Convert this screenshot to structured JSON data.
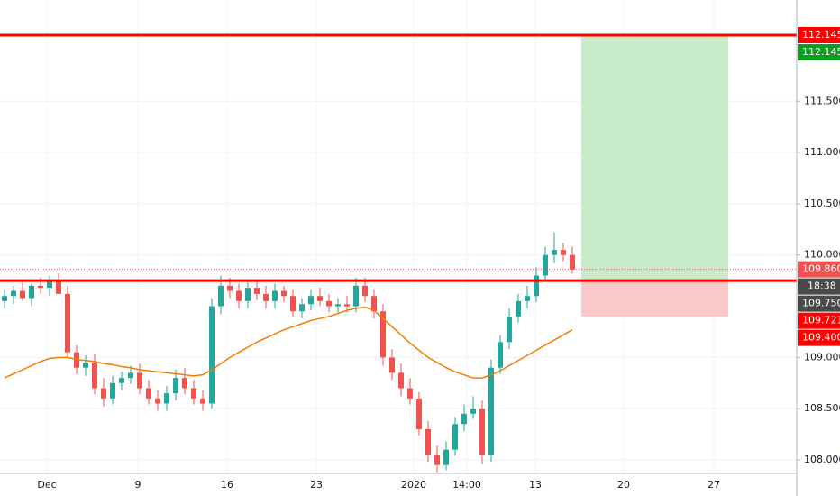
{
  "chart_data": {
    "type": "candlestick",
    "x": [
      0.5,
      1.5,
      2.5,
      3.5,
      4.5,
      5.5,
      6.5,
      7.5,
      8.5,
      9.5,
      10.5,
      11.5,
      12.5,
      13.5,
      14.5,
      15.5,
      16.5,
      17.5,
      18.5,
      19.5,
      20.5,
      21.5,
      22.5,
      23.5,
      24.5,
      25.5,
      26.5,
      27.5,
      28.5,
      29.5,
      30.5,
      31.5,
      32.5,
      33.5,
      34.5,
      35.5,
      36.5,
      37.5,
      38.5,
      39.5,
      40.5,
      41.5,
      42.5,
      43.5,
      44.5,
      45.5,
      46.5,
      47.5,
      48.5,
      49.5,
      50.5,
      51.5,
      52.5,
      53.5,
      54.5,
      55.5,
      56.5,
      57.5,
      58.5,
      59.5,
      60.5,
      61.5,
      62.5,
      63.5
    ],
    "open": [
      109.55,
      109.6,
      109.65,
      109.58,
      109.7,
      109.68,
      109.75,
      109.62,
      109.05,
      108.9,
      108.95,
      108.7,
      108.6,
      108.75,
      108.8,
      108.85,
      108.7,
      108.6,
      108.55,
      108.65,
      108.8,
      108.7,
      108.6,
      108.55,
      109.5,
      109.7,
      109.65,
      109.55,
      109.68,
      109.62,
      109.55,
      109.65,
      109.6,
      109.45,
      109.52,
      109.6,
      109.55,
      109.5,
      109.52,
      109.5,
      109.7,
      109.6,
      109.45,
      109.0,
      108.85,
      108.7,
      108.6,
      108.3,
      108.05,
      107.95,
      108.1,
      108.35,
      108.45,
      108.5,
      108.05,
      108.9,
      109.15,
      109.4,
      109.55,
      109.6,
      109.8,
      110.0,
      110.05,
      110.0
    ],
    "high": [
      109.66,
      109.7,
      109.74,
      109.72,
      109.78,
      109.8,
      109.82,
      109.7,
      109.12,
      109.02,
      109.04,
      108.8,
      108.82,
      108.86,
      108.92,
      108.94,
      108.78,
      108.68,
      108.72,
      108.88,
      108.9,
      108.78,
      108.68,
      109.58,
      109.8,
      109.78,
      109.72,
      109.74,
      109.76,
      109.7,
      109.72,
      109.7,
      109.66,
      109.58,
      109.66,
      109.68,
      109.62,
      109.58,
      109.6,
      109.78,
      109.78,
      109.66,
      109.52,
      109.08,
      108.94,
      108.8,
      108.66,
      108.38,
      108.14,
      108.18,
      108.42,
      108.54,
      108.62,
      108.58,
      108.98,
      109.22,
      109.48,
      109.62,
      109.7,
      109.88,
      110.08,
      110.22,
      110.12,
      110.08
    ],
    "low": [
      109.48,
      109.52,
      109.55,
      109.5,
      109.62,
      109.6,
      109.66,
      109.0,
      108.84,
      108.82,
      108.64,
      108.52,
      108.54,
      108.68,
      108.74,
      108.64,
      108.54,
      108.48,
      108.48,
      108.58,
      108.64,
      108.54,
      108.48,
      108.5,
      109.42,
      109.58,
      109.48,
      109.48,
      109.56,
      109.48,
      109.48,
      109.54,
      109.4,
      109.38,
      109.46,
      109.5,
      109.44,
      109.44,
      109.44,
      109.44,
      109.54,
      109.38,
      108.92,
      108.78,
      108.62,
      108.54,
      108.24,
      107.98,
      107.88,
      107.9,
      108.04,
      108.28,
      108.4,
      107.96,
      107.98,
      108.84,
      109.08,
      109.34,
      109.48,
      109.54,
      109.74,
      109.92,
      109.94,
      109.82
    ],
    "close": [
      109.6,
      109.65,
      109.58,
      109.7,
      109.68,
      109.75,
      109.62,
      109.05,
      108.9,
      108.95,
      108.7,
      108.6,
      108.75,
      108.8,
      108.85,
      108.7,
      108.6,
      108.55,
      108.65,
      108.8,
      108.7,
      108.6,
      108.55,
      109.5,
      109.7,
      109.65,
      109.55,
      109.68,
      109.62,
      109.55,
      109.65,
      109.6,
      109.45,
      109.52,
      109.6,
      109.55,
      109.5,
      109.52,
      109.5,
      109.7,
      109.6,
      109.45,
      109.0,
      108.85,
      108.7,
      108.6,
      108.3,
      108.05,
      107.95,
      108.1,
      108.35,
      108.45,
      108.5,
      108.05,
      108.9,
      109.15,
      109.4,
      109.55,
      109.6,
      109.8,
      110.0,
      110.05,
      110.0,
      109.86
    ],
    "up_color": "#26a69a",
    "down_color": "#ef5350",
    "moving_average": {
      "color": "#f57c00",
      "values": [
        108.8,
        108.84,
        108.88,
        108.92,
        108.96,
        108.99,
        109.0,
        109.0,
        108.98,
        108.97,
        108.96,
        108.94,
        108.93,
        108.91,
        108.9,
        108.88,
        108.87,
        108.86,
        108.85,
        108.84,
        108.83,
        108.82,
        108.83,
        108.88,
        108.94,
        109.0,
        109.05,
        109.1,
        109.15,
        109.19,
        109.23,
        109.27,
        109.3,
        109.33,
        109.36,
        109.38,
        109.4,
        109.43,
        109.46,
        109.48,
        109.49,
        109.46,
        109.38,
        109.3,
        109.22,
        109.14,
        109.07,
        109.0,
        108.95,
        108.9,
        108.86,
        108.83,
        108.8,
        108.8,
        108.83,
        108.87,
        108.92,
        108.97,
        109.02,
        109.07,
        109.12,
        109.17,
        109.22,
        109.27
      ]
    },
    "position": {
      "entry": 109.75,
      "target": 112.145,
      "stop": 109.4,
      "x_start": 64.5,
      "x_end": 80.8,
      "profit_color": "#c8ebc9",
      "loss_color": "#f9c9c9"
    },
    "levels": [
      {
        "value": 112.145,
        "color": "#ff0000"
      },
      {
        "value": 109.75,
        "color": "#ff0000"
      }
    ],
    "last_price": 109.86,
    "countdown": "18:38",
    "price_labels": [
      {
        "value": 112.145,
        "label": "112.145",
        "color": "#ff0000"
      },
      {
        "value": 112.145,
        "label": "112.145",
        "color": "#0d9d1f"
      },
      {
        "value": 109.86,
        "label": "109.860",
        "color": "#ef5350"
      },
      {
        "value": 109.75,
        "label": "109.750",
        "color": "#4a4a4a"
      },
      {
        "value": 109.721,
        "label": "109.721",
        "color": "#ff0000"
      },
      {
        "value": 109.4,
        "label": "109.400",
        "color": "#ff0000"
      }
    ],
    "xlim": [
      0,
      88.4
    ],
    "ylim": [
      107.868,
      112.488
    ],
    "xticks": [
      {
        "value": 5.2,
        "label": "Dec"
      },
      {
        "value": 15.3,
        "label": "9"
      },
      {
        "value": 25.2,
        "label": "16"
      },
      {
        "value": 35.1,
        "label": "23"
      },
      {
        "value": 45.9,
        "label": "2020"
      },
      {
        "value": 51.8,
        "label": "14:00"
      },
      {
        "value": 59.4,
        "label": "13"
      },
      {
        "value": 69.2,
        "label": "20"
      },
      {
        "value": 79.2,
        "label": "27"
      }
    ],
    "yticks": [
      {
        "value": 108,
        "label": "108.000"
      },
      {
        "value": 108.5,
        "label": "108.500"
      },
      {
        "value": 109,
        "label": "109.000"
      },
      {
        "value": 110,
        "label": "110.000"
      },
      {
        "value": 110.5,
        "label": "110.500"
      },
      {
        "value": 111,
        "label": "111.000"
      },
      {
        "value": 111.5,
        "label": "111.500"
      }
    ],
    "grid": true
  }
}
